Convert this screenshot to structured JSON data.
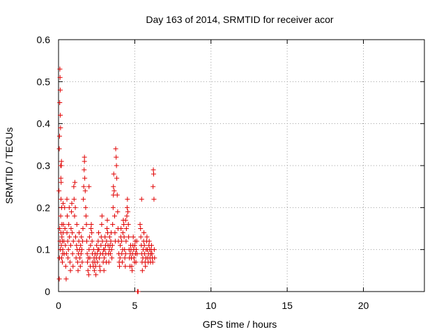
{
  "chart_data": {
    "type": "scatter",
    "title": "Day 163 of 2014, SRMTID for receiver acor",
    "xlabel": "GPS time / hours",
    "ylabel": "SRMTID / TECUs",
    "xlim": [
      0,
      24
    ],
    "ylim": [
      0,
      0.6
    ],
    "xticks": [
      0,
      5,
      10,
      15,
      20
    ],
    "xtick_labels": [
      "0",
      "5",
      "10",
      "15",
      "20"
    ],
    "yticks": [
      0,
      0.1,
      0.2,
      0.3,
      0.4,
      0.5,
      0.6
    ],
    "ytick_labels": [
      "0",
      "0.1",
      "0.2",
      "0.3",
      "0.4",
      "0.5",
      "0.6"
    ],
    "grid": true,
    "marker": "plus",
    "series": [
      {
        "name": "SRMTID",
        "color": "#e00000",
        "points": [
          [
            0.03,
            0.24
          ],
          [
            0.05,
            0.34
          ],
          [
            0.07,
            0.37
          ],
          [
            0.08,
            0.45
          ],
          [
            0.09,
            0.53
          ],
          [
            0.1,
            0.51
          ],
          [
            0.11,
            0.48
          ],
          [
            0.12,
            0.42
          ],
          [
            0.13,
            0.39
          ],
          [
            0.14,
            0.3
          ],
          [
            0.15,
            0.27
          ],
          [
            0.16,
            0.22
          ],
          [
            0.17,
            0.26
          ],
          [
            0.18,
            0.3
          ],
          [
            0.19,
            0.31
          ],
          [
            0.2,
            0.2
          ],
          [
            0.22,
            0.16
          ],
          [
            0.25,
            0.12
          ],
          [
            0.27,
            0.09
          ],
          [
            0.3,
            0.21
          ],
          [
            0.05,
            0.03
          ],
          [
            0.06,
            0.08
          ],
          [
            0.08,
            0.15
          ],
          [
            0.1,
            0.12
          ],
          [
            0.12,
            0.1
          ],
          [
            0.14,
            0.18
          ],
          [
            0.16,
            0.14
          ],
          [
            0.18,
            0.11
          ],
          [
            0.2,
            0.08
          ],
          [
            0.22,
            0.13
          ],
          [
            0.25,
            0.07
          ],
          [
            0.28,
            0.1
          ],
          [
            0.3,
            0.14
          ],
          [
            0.32,
            0.16
          ],
          [
            0.35,
            0.12
          ],
          [
            0.37,
            0.09
          ],
          [
            0.4,
            0.2
          ],
          [
            0.42,
            0.15
          ],
          [
            0.45,
            0.11
          ],
          [
            0.47,
            0.06
          ],
          [
            0.5,
            0.03
          ],
          [
            0.52,
            0.09
          ],
          [
            0.55,
            0.14
          ],
          [
            0.57,
            0.18
          ],
          [
            0.6,
            0.12
          ],
          [
            0.62,
            0.08
          ],
          [
            0.65,
            0.1
          ],
          [
            0.67,
            0.16
          ],
          [
            0.7,
            0.2
          ],
          [
            0.72,
            0.13
          ],
          [
            0.75,
            0.07
          ],
          [
            0.78,
            0.05
          ],
          [
            0.8,
            0.11
          ],
          [
            0.82,
            0.15
          ],
          [
            0.85,
            0.19
          ],
          [
            0.87,
            0.21
          ],
          [
            0.9,
            0.14
          ],
          [
            0.92,
            0.09
          ],
          [
            0.95,
            0.06
          ],
          [
            0.97,
            0.12
          ],
          [
            1.0,
            0.25
          ],
          [
            1.02,
            0.22
          ],
          [
            1.05,
            0.18
          ],
          [
            1.07,
            0.26
          ],
          [
            1.1,
            0.2
          ],
          [
            1.12,
            0.13
          ],
          [
            1.15,
            0.08
          ],
          [
            1.18,
            0.11
          ],
          [
            1.2,
            0.16
          ],
          [
            1.22,
            0.1
          ],
          [
            1.25,
            0.07
          ],
          [
            1.28,
            0.05
          ],
          [
            1.3,
            0.09
          ],
          [
            1.33,
            0.12
          ],
          [
            1.35,
            0.14
          ],
          [
            1.38,
            0.1
          ],
          [
            1.4,
            0.08
          ],
          [
            1.43,
            0.06
          ],
          [
            1.45,
            0.11
          ],
          [
            1.48,
            0.09
          ],
          [
            1.5,
            0.13
          ],
          [
            1.53,
            0.1
          ],
          [
            1.55,
            0.07
          ],
          [
            1.58,
            0.12
          ],
          [
            1.6,
            0.15
          ],
          [
            1.63,
            0.22
          ],
          [
            1.65,
            0.25
          ],
          [
            1.68,
            0.29
          ],
          [
            1.7,
            0.31
          ],
          [
            1.72,
            0.27
          ],
          [
            1.75,
            0.24
          ],
          [
            1.78,
            0.2
          ],
          [
            1.8,
            0.18
          ],
          [
            1.83,
            0.16
          ],
          [
            1.85,
            0.12
          ],
          [
            1.88,
            0.09
          ],
          [
            1.9,
            0.07
          ],
          [
            1.93,
            0.05
          ],
          [
            1.95,
            0.08
          ],
          [
            1.98,
            0.04
          ],
          [
            2.0,
            0.1
          ],
          [
            2.03,
            0.13
          ],
          [
            2.05,
            0.08
          ],
          [
            2.08,
            0.06
          ],
          [
            2.1,
            0.11
          ],
          [
            2.13,
            0.15
          ],
          [
            2.15,
            0.16
          ],
          [
            2.18,
            0.14
          ],
          [
            2.2,
            0.12
          ],
          [
            2.22,
            0.09
          ],
          [
            2.25,
            0.07
          ],
          [
            2.28,
            0.06
          ],
          [
            2.3,
            0.1
          ],
          [
            2.33,
            0.08
          ],
          [
            2.35,
            0.05
          ],
          [
            2.38,
            0.07
          ],
          [
            2.4,
            0.09
          ],
          [
            2.43,
            0.06
          ],
          [
            2.45,
            0.04
          ],
          [
            2.48,
            0.08
          ],
          [
            2.5,
            0.11
          ],
          [
            2.53,
            0.09
          ],
          [
            2.55,
            0.07
          ],
          [
            2.58,
            0.1
          ],
          [
            2.6,
            0.12
          ],
          [
            2.63,
            0.14
          ],
          [
            2.65,
            0.1
          ],
          [
            2.68,
            0.08
          ],
          [
            2.7,
            0.06
          ],
          [
            2.73,
            0.05
          ],
          [
            2.75,
            0.09
          ],
          [
            2.78,
            0.11
          ],
          [
            2.8,
            0.13
          ],
          [
            2.83,
            0.16
          ],
          [
            2.85,
            0.18
          ],
          [
            2.88,
            0.12
          ],
          [
            2.9,
            0.09
          ],
          [
            2.93,
            0.07
          ],
          [
            2.95,
            0.1
          ],
          [
            2.98,
            0.05
          ],
          [
            3.0,
            0.08
          ],
          [
            3.03,
            0.1
          ],
          [
            3.05,
            0.13
          ],
          [
            3.08,
            0.11
          ],
          [
            3.1,
            0.09
          ],
          [
            3.13,
            0.07
          ],
          [
            3.15,
            0.12
          ],
          [
            3.18,
            0.15
          ],
          [
            3.2,
            0.17
          ],
          [
            3.22,
            0.14
          ],
          [
            3.25,
            0.11
          ],
          [
            3.28,
            0.09
          ],
          [
            3.3,
            0.07
          ],
          [
            3.33,
            0.1
          ],
          [
            3.35,
            0.13
          ],
          [
            3.38,
            0.11
          ],
          [
            3.4,
            0.09
          ],
          [
            3.43,
            0.12
          ],
          [
            3.45,
            0.14
          ],
          [
            3.48,
            0.1
          ],
          [
            3.5,
            0.08
          ],
          [
            3.53,
            0.11
          ],
          [
            3.55,
            0.16
          ],
          [
            3.58,
            0.2
          ],
          [
            3.6,
            0.25
          ],
          [
            3.62,
            0.28
          ],
          [
            3.65,
            0.24
          ],
          [
            3.68,
            0.18
          ],
          [
            3.7,
            0.14
          ],
          [
            3.72,
            0.12
          ],
          [
            3.75,
            0.34
          ],
          [
            3.78,
            0.32
          ],
          [
            3.8,
            0.3
          ],
          [
            3.82,
            0.27
          ],
          [
            3.85,
            0.23
          ],
          [
            3.88,
            0.19
          ],
          [
            3.9,
            0.15
          ],
          [
            3.93,
            0.12
          ],
          [
            3.95,
            0.09
          ],
          [
            3.98,
            0.07
          ],
          [
            4.0,
            0.06
          ],
          [
            4.03,
            0.08
          ],
          [
            4.05,
            0.11
          ],
          [
            4.08,
            0.13
          ],
          [
            4.1,
            0.15
          ],
          [
            4.13,
            0.12
          ],
          [
            4.15,
            0.09
          ],
          [
            4.18,
            0.07
          ],
          [
            4.2,
            0.1
          ],
          [
            4.22,
            0.14
          ],
          [
            4.25,
            0.17
          ],
          [
            4.28,
            0.16
          ],
          [
            4.3,
            0.13
          ],
          [
            4.33,
            0.1
          ],
          [
            4.35,
            0.08
          ],
          [
            4.38,
            0.06
          ],
          [
            4.4,
            0.09
          ],
          [
            4.43,
            0.12
          ],
          [
            4.45,
            0.15
          ],
          [
            4.48,
            0.18
          ],
          [
            4.5,
            0.2
          ],
          [
            4.52,
            0.22
          ],
          [
            4.55,
            0.19
          ],
          [
            4.58,
            0.16
          ],
          [
            4.6,
            0.13
          ],
          [
            4.63,
            0.1
          ],
          [
            4.65,
            0.08
          ],
          [
            4.68,
            0.06
          ],
          [
            4.7,
            0.09
          ],
          [
            4.73,
            0.11
          ],
          [
            4.75,
            0.1
          ],
          [
            4.78,
            0.08
          ],
          [
            4.8,
            0.06
          ],
          [
            4.83,
            0.05
          ],
          [
            4.85,
            0.09
          ],
          [
            4.88,
            0.11
          ],
          [
            4.9,
            0.13
          ],
          [
            4.93,
            0.1
          ],
          [
            4.95,
            0.08
          ],
          [
            4.98,
            0.07
          ],
          [
            5.0,
            0.11
          ],
          [
            5.03,
            0.12
          ],
          [
            5.05,
            0.09
          ],
          [
            5.08,
            0.07
          ],
          [
            5.1,
            0.1
          ],
          [
            5.13,
            0.12
          ],
          [
            5.15,
            0.09
          ],
          [
            5.18,
            0.0
          ],
          [
            5.2,
            0.0
          ],
          [
            5.22,
            0.0
          ],
          [
            5.35,
            0.16
          ],
          [
            5.38,
            0.15
          ],
          [
            5.4,
            0.13
          ],
          [
            5.43,
            0.11
          ],
          [
            5.45,
            0.09
          ],
          [
            5.48,
            0.07
          ],
          [
            5.5,
            0.05
          ],
          [
            5.53,
            0.08
          ],
          [
            5.55,
            0.1
          ],
          [
            5.58,
            0.12
          ],
          [
            5.6,
            0.14
          ],
          [
            5.63,
            0.11
          ],
          [
            5.65,
            0.09
          ],
          [
            5.68,
            0.07
          ],
          [
            5.7,
            0.06
          ],
          [
            5.73,
            0.08
          ],
          [
            5.75,
            0.1
          ],
          [
            5.78,
            0.12
          ],
          [
            5.8,
            0.13
          ],
          [
            5.83,
            0.1
          ],
          [
            5.85,
            0.08
          ],
          [
            5.88,
            0.07
          ],
          [
            5.9,
            0.09
          ],
          [
            5.93,
            0.11
          ],
          [
            5.95,
            0.12
          ],
          [
            5.98,
            0.1
          ],
          [
            6.0,
            0.08
          ],
          [
            6.03,
            0.07
          ],
          [
            6.05,
            0.09
          ],
          [
            6.08,
            0.1
          ],
          [
            6.1,
            0.11
          ],
          [
            6.13,
            0.09
          ],
          [
            6.15,
            0.08
          ],
          [
            6.18,
            0.07
          ],
          [
            6.2,
            0.25
          ],
          [
            6.22,
            0.29
          ],
          [
            6.24,
            0.28
          ],
          [
            6.26,
            0.22
          ],
          [
            6.28,
            0.1
          ],
          [
            6.3,
            0.08
          ],
          [
            5.45,
            0.22
          ],
          [
            2.0,
            0.25
          ],
          [
            1.7,
            0.32
          ],
          [
            0.55,
            0.22
          ],
          [
            3.6,
            0.23
          ],
          [
            4.4,
            0.17
          ]
        ]
      }
    ]
  }
}
